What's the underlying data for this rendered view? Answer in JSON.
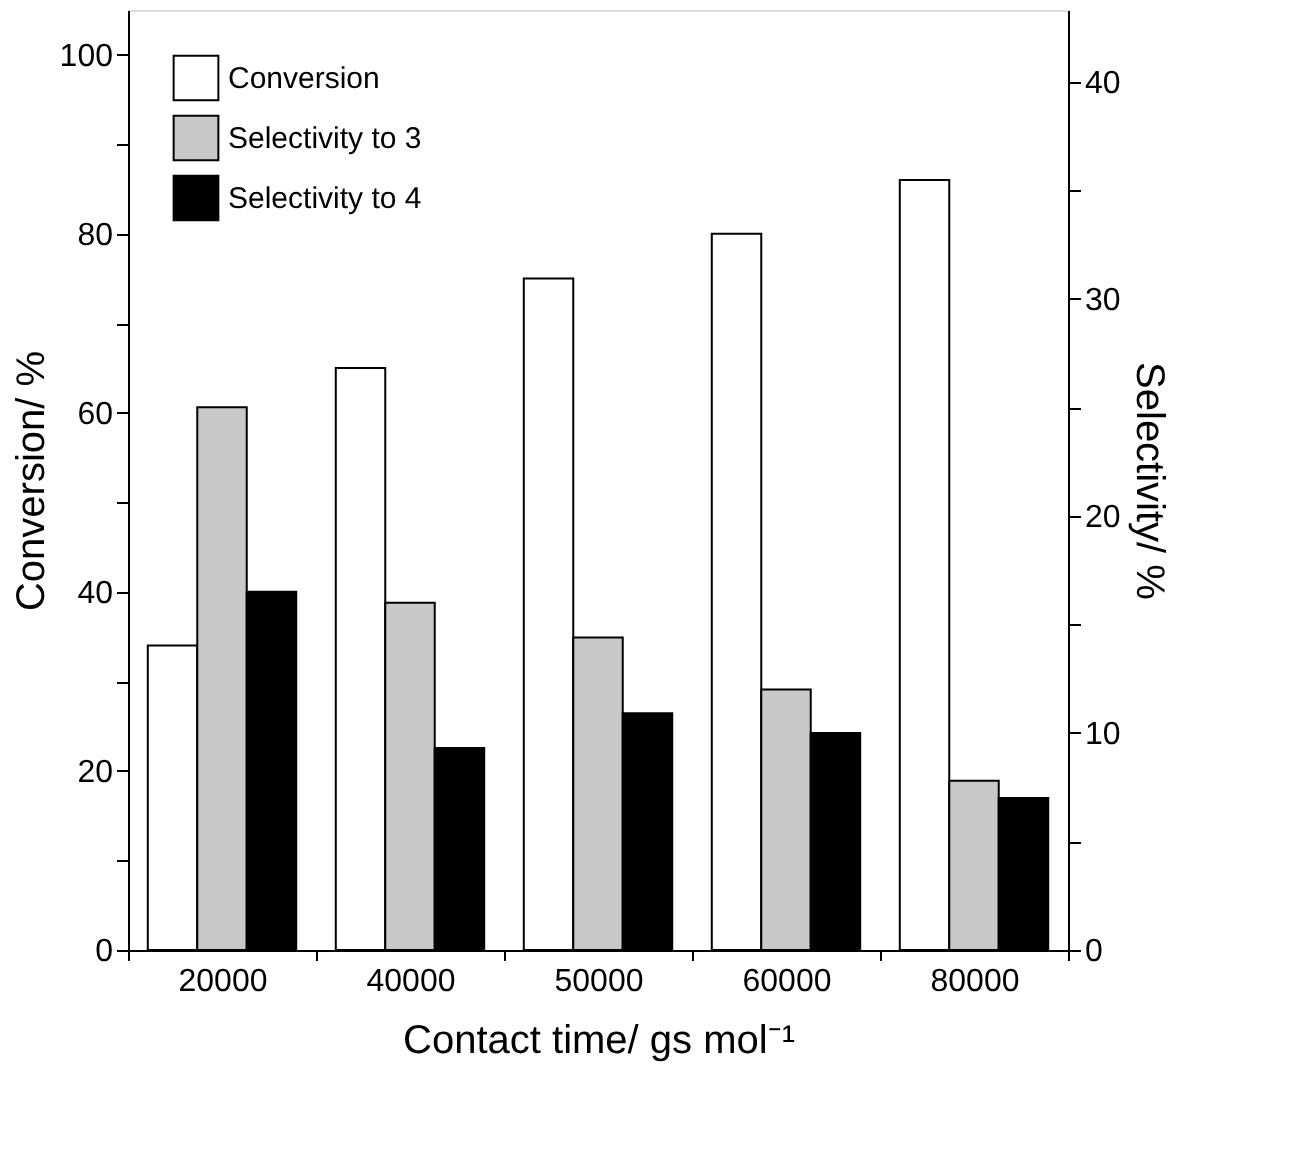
{
  "chart_data": {
    "type": "bar",
    "xlabel": "Contact time/ gs mol⁻¹",
    "ylabel": "Conversion/ %",
    "y2label": "Selectivity/ %",
    "categories": [
      "20000",
      "40000",
      "50000",
      "60000",
      "80000"
    ],
    "series": [
      {
        "name": "Conversion",
        "color": "#ffffff",
        "values": [
          34,
          65,
          75,
          80,
          86
        ]
      },
      {
        "name": "Selectivity to 3",
        "color": "#c8c8c8",
        "axis": "y2",
        "values": [
          25,
          16,
          14.4,
          12,
          7.8
        ]
      },
      {
        "name": "Selectivity to 4",
        "color": "#000000",
        "axis": "y2",
        "values": [
          16.5,
          9.3,
          10.9,
          10,
          7
        ]
      }
    ],
    "ylim": [
      0,
      105
    ],
    "yticks": [
      0,
      {
        "value": 10,
        "label": null
      },
      20,
      {
        "value": 30,
        "label": null
      },
      40,
      {
        "value": 50,
        "label": null
      },
      60,
      {
        "value": 70,
        "label": null
      },
      80,
      {
        "value": 90,
        "label": null
      },
      100
    ],
    "y2lim": [
      0,
      43.3
    ],
    "y2ticks": [
      0,
      {
        "value": 5,
        "label": null
      },
      10,
      {
        "value": 15,
        "label": null
      },
      20,
      {
        "value": 25,
        "label": null
      },
      30,
      {
        "value": 35,
        "label": null
      },
      40
    ],
    "legend": "top left",
    "grid": false
  }
}
